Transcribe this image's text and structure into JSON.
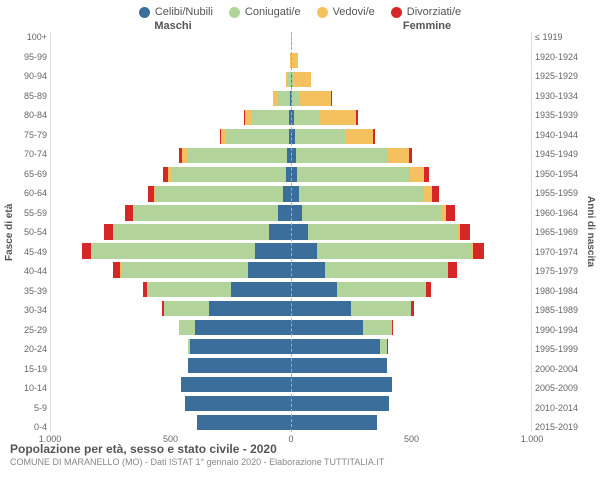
{
  "chart": {
    "type": "bar",
    "title": "Popolazione per età, sesso e stato civile - 2020",
    "subtitle": "COMUNE DI MARANELLO (MO) - Dati ISTAT 1° gennaio 2020 - Elaborazione TUTTITALIA.IT",
    "header_left": "Maschi",
    "header_right": "Femmine",
    "ylabel_left": "Fasce di età",
    "ylabel_right": "Anni di nascita",
    "xmax": 1000,
    "xticks": [
      "1.000",
      "500",
      "0",
      "500",
      "1.000"
    ],
    "legend": [
      {
        "label": "Celibi/Nubili",
        "color": "#3b6e9b"
      },
      {
        "label": "Coniugati/e",
        "color": "#b2d49a"
      },
      {
        "label": "Vedovi/e",
        "color": "#f4c15e"
      },
      {
        "label": "Divorziati/e",
        "color": "#d62728"
      }
    ],
    "colors": {
      "single": "#3b6e9b",
      "married": "#b2d49a",
      "widowed": "#f4c15e",
      "divorced": "#d62728",
      "grid": "#dddddd",
      "centerline": "#aaaaaa",
      "bg": "#ffffff"
    },
    "age_labels": [
      "100+",
      "95-99",
      "90-94",
      "85-89",
      "80-84",
      "75-79",
      "70-74",
      "65-69",
      "60-64",
      "55-59",
      "50-54",
      "45-49",
      "40-44",
      "35-39",
      "30-34",
      "25-29",
      "20-24",
      "15-19",
      "10-14",
      "5-9",
      "0-4"
    ],
    "birth_labels": [
      "≤ 1919",
      "1920-1924",
      "1925-1929",
      "1930-1934",
      "1935-1939",
      "1940-1944",
      "1945-1949",
      "1950-1954",
      "1955-1959",
      "1960-1964",
      "1965-1969",
      "1970-1974",
      "1975-1979",
      "1980-1984",
      "1985-1989",
      "1990-1994",
      "1995-1999",
      "2000-2004",
      "2005-2009",
      "2010-2014",
      "2015-2019"
    ],
    "rows": [
      {
        "m": {
          "s": 0,
          "m": 0,
          "w": 2,
          "d": 0
        },
        "f": {
          "s": 0,
          "m": 0,
          "w": 6,
          "d": 0
        }
      },
      {
        "m": {
          "s": 0,
          "m": 2,
          "w": 4,
          "d": 0
        },
        "f": {
          "s": 2,
          "m": 1,
          "w": 25,
          "d": 0
        }
      },
      {
        "m": {
          "s": 2,
          "m": 10,
          "w": 10,
          "d": 0
        },
        "f": {
          "s": 4,
          "m": 6,
          "w": 75,
          "d": 0
        }
      },
      {
        "m": {
          "s": 3,
          "m": 50,
          "w": 20,
          "d": 2
        },
        "f": {
          "s": 6,
          "m": 30,
          "w": 130,
          "d": 3
        }
      },
      {
        "m": {
          "s": 8,
          "m": 160,
          "w": 25,
          "d": 5
        },
        "f": {
          "s": 12,
          "m": 110,
          "w": 150,
          "d": 6
        }
      },
      {
        "m": {
          "s": 10,
          "m": 260,
          "w": 20,
          "d": 8
        },
        "f": {
          "s": 15,
          "m": 210,
          "w": 115,
          "d": 10
        }
      },
      {
        "m": {
          "s": 15,
          "m": 420,
          "w": 18,
          "d": 12
        },
        "f": {
          "s": 20,
          "m": 380,
          "w": 90,
          "d": 15
        }
      },
      {
        "m": {
          "s": 22,
          "m": 480,
          "w": 12,
          "d": 18
        },
        "f": {
          "s": 25,
          "m": 470,
          "w": 60,
          "d": 22
        }
      },
      {
        "m": {
          "s": 35,
          "m": 530,
          "w": 8,
          "d": 25
        },
        "f": {
          "s": 32,
          "m": 520,
          "w": 35,
          "d": 28
        }
      },
      {
        "m": {
          "s": 55,
          "m": 600,
          "w": 5,
          "d": 30
        },
        "f": {
          "s": 45,
          "m": 580,
          "w": 22,
          "d": 35
        }
      },
      {
        "m": {
          "s": 90,
          "m": 650,
          "w": 3,
          "d": 35
        },
        "f": {
          "s": 70,
          "m": 620,
          "w": 14,
          "d": 40
        }
      },
      {
        "m": {
          "s": 150,
          "m": 680,
          "w": 2,
          "d": 40
        },
        "f": {
          "s": 110,
          "m": 640,
          "w": 8,
          "d": 45
        }
      },
      {
        "m": {
          "s": 180,
          "m": 530,
          "w": 1,
          "d": 30
        },
        "f": {
          "s": 140,
          "m": 510,
          "w": 5,
          "d": 35
        }
      },
      {
        "m": {
          "s": 250,
          "m": 350,
          "w": 0,
          "d": 18
        },
        "f": {
          "s": 190,
          "m": 370,
          "w": 2,
          "d": 22
        }
      },
      {
        "m": {
          "s": 340,
          "m": 190,
          "w": 0,
          "d": 8
        },
        "f": {
          "s": 250,
          "m": 250,
          "w": 1,
          "d": 12
        }
      },
      {
        "m": {
          "s": 400,
          "m": 65,
          "w": 0,
          "d": 2
        },
        "f": {
          "s": 300,
          "m": 120,
          "w": 0,
          "d": 4
        }
      },
      {
        "m": {
          "s": 420,
          "m": 10,
          "w": 0,
          "d": 0
        },
        "f": {
          "s": 370,
          "m": 30,
          "w": 0,
          "d": 1
        }
      },
      {
        "m": {
          "s": 430,
          "m": 0,
          "w": 0,
          "d": 0
        },
        "f": {
          "s": 400,
          "m": 0,
          "w": 0,
          "d": 0
        }
      },
      {
        "m": {
          "s": 460,
          "m": 0,
          "w": 0,
          "d": 0
        },
        "f": {
          "s": 420,
          "m": 0,
          "w": 0,
          "d": 0
        }
      },
      {
        "m": {
          "s": 440,
          "m": 0,
          "w": 0,
          "d": 0
        },
        "f": {
          "s": 410,
          "m": 0,
          "w": 0,
          "d": 0
        }
      },
      {
        "m": {
          "s": 390,
          "m": 0,
          "w": 0,
          "d": 0
        },
        "f": {
          "s": 360,
          "m": 0,
          "w": 0,
          "d": 0
        }
      }
    ]
  }
}
